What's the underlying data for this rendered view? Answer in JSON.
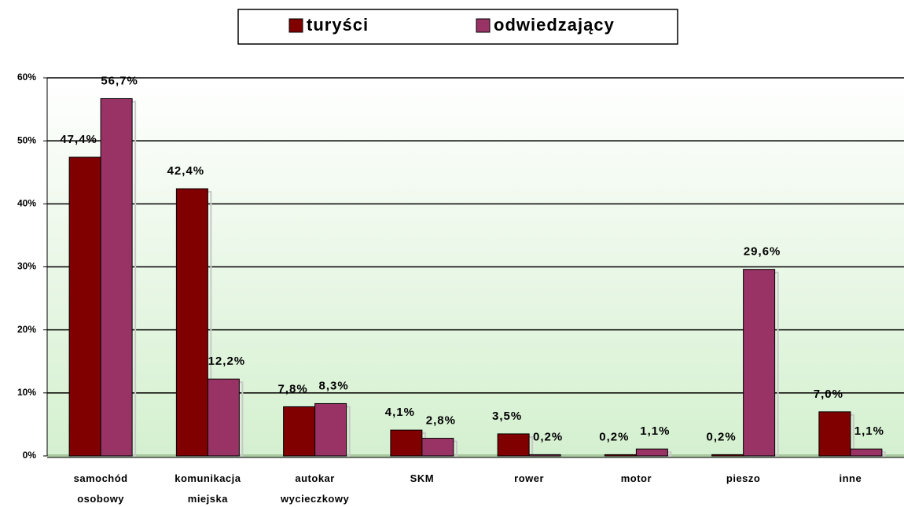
{
  "chart_data": {
    "type": "bar",
    "categories": [
      "samochód osobowy",
      "komunikacja miejska",
      "autokar wycieczkowy",
      "SKM",
      "rower",
      "motor",
      "pieszo",
      "inne"
    ],
    "series": [
      {
        "name": "turyści",
        "color": "#800000",
        "values": [
          47.4,
          42.4,
          7.8,
          4.1,
          3.5,
          0.2,
          0.2,
          7.0
        ],
        "value_labels": [
          "47,4%",
          "42,4%",
          "7,8%",
          "4,1%",
          "3,5%",
          "0,2%",
          "0,2%",
          "7,0%"
        ]
      },
      {
        "name": "odwiedzający",
        "color": "#993366",
        "values": [
          56.7,
          12.2,
          8.3,
          2.8,
          0.2,
          1.1,
          29.6,
          1.1
        ],
        "value_labels": [
          "56,7%",
          "12,2%",
          "8,3%",
          "2,8%",
          "0,2%",
          "1,1%",
          "29,6%",
          "1,1%"
        ]
      }
    ],
    "ylim": [
      0,
      60
    ],
    "yticks": [
      {
        "value": 0,
        "label": "0%"
      },
      {
        "value": 10,
        "label": "10%"
      },
      {
        "value": 20,
        "label": "20%"
      },
      {
        "value": 30,
        "label": "30%"
      },
      {
        "value": 40,
        "label": "40%"
      },
      {
        "value": 50,
        "label": "50%"
      },
      {
        "value": 60,
        "label": "60%"
      }
    ],
    "grid": true,
    "legend": "top"
  }
}
